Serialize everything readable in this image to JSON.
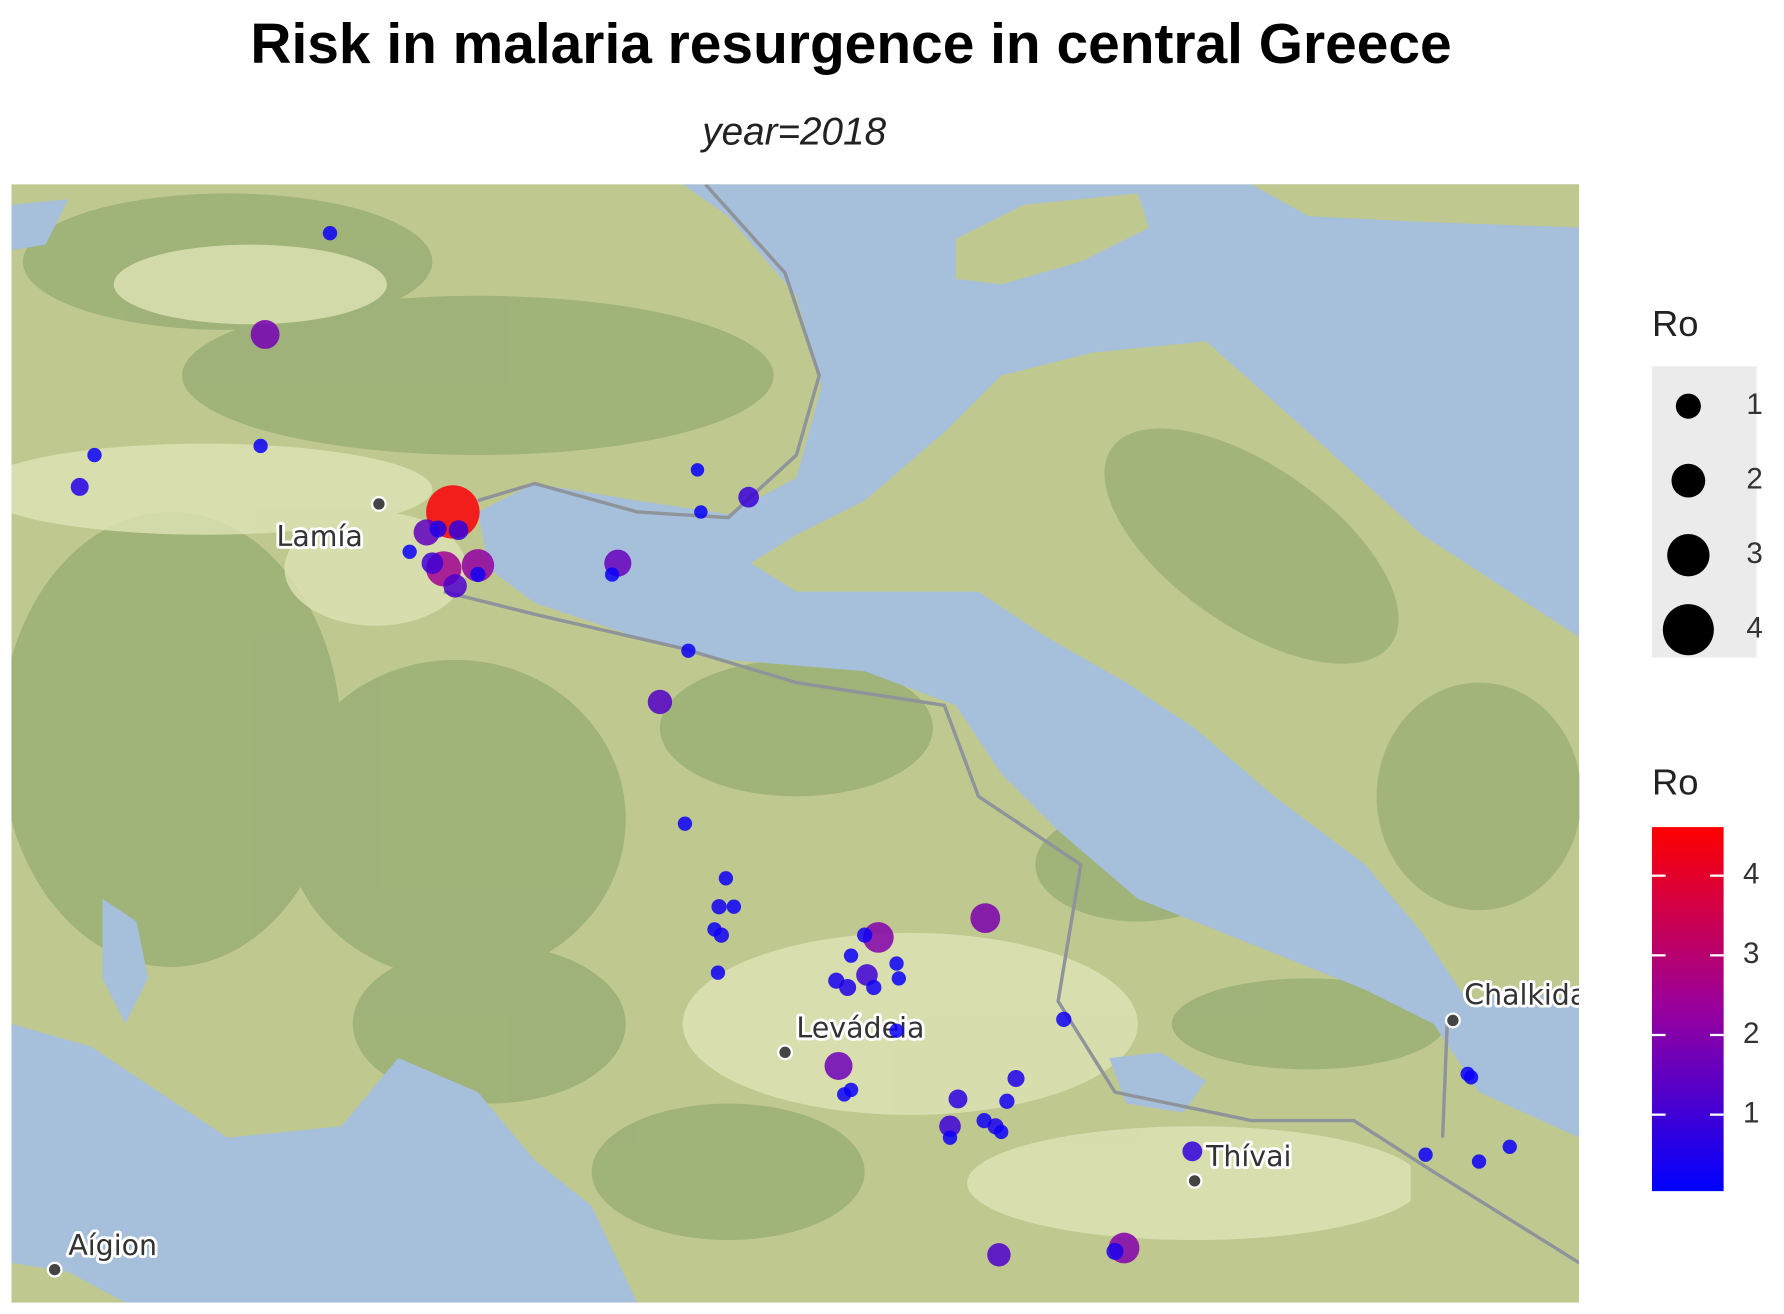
{
  "title": "Risk in malaria resurgence in central Greece",
  "subtitle": "year=2018",
  "places": [
    {
      "name": "Lamía"
    },
    {
      "name": "Levádeia"
    },
    {
      "name": "Thívai"
    },
    {
      "name": "Chalkida"
    },
    {
      "name": "Aígion"
    }
  ],
  "legend": {
    "size": {
      "title": "Ro",
      "values": [
        1,
        2,
        3,
        4
      ]
    },
    "color": {
      "title": "Ro",
      "lim": [
        0.04,
        4.61
      ],
      "ticks": [
        1,
        2,
        3,
        4
      ],
      "low": "#0000ff",
      "high": "#ff0000"
    }
  },
  "points": {
    "values": [
      0.2,
      1.8,
      0.2,
      0.6,
      0.2,
      0.1,
      0.1,
      0.9,
      4.5,
      1.5,
      0.8,
      0.5,
      0.2,
      2.2,
      2.5,
      1.2,
      1.0,
      0.3,
      1.6,
      0.2,
      0.2,
      1.3,
      0.2,
      0.2,
      0.3,
      0.2,
      0.2,
      0.3,
      0.2,
      2.0,
      0.3,
      0.2,
      1.0,
      0.4,
      0.5,
      0.3,
      0.2,
      0.2,
      0.2,
      1.9,
      1.7,
      0.2,
      0.2,
      0.5,
      0.3,
      0.7,
      1.0,
      0.2,
      0.3,
      0.4,
      0.2,
      0.3,
      0.8,
      0.2,
      0.2,
      0.2,
      0.2,
      0.2,
      1.2,
      2.0,
      0.5
    ]
  }
}
